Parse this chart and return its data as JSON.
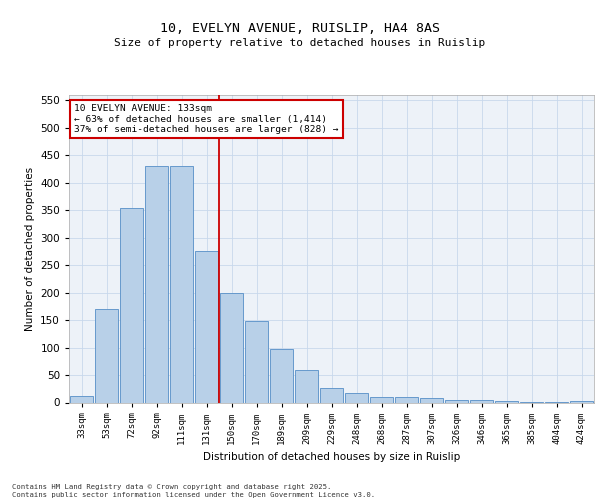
{
  "title1": "10, EVELYN AVENUE, RUISLIP, HA4 8AS",
  "title2": "Size of property relative to detached houses in Ruislip",
  "xlabel": "Distribution of detached houses by size in Ruislip",
  "ylabel": "Number of detached properties",
  "categories": [
    "33sqm",
    "53sqm",
    "72sqm",
    "92sqm",
    "111sqm",
    "131sqm",
    "150sqm",
    "170sqm",
    "189sqm",
    "209sqm",
    "229sqm",
    "248sqm",
    "268sqm",
    "287sqm",
    "307sqm",
    "326sqm",
    "346sqm",
    "365sqm",
    "385sqm",
    "404sqm",
    "424sqm"
  ],
  "values": [
    12,
    170,
    355,
    430,
    430,
    275,
    200,
    148,
    98,
    60,
    27,
    18,
    10,
    10,
    8,
    5,
    4,
    2,
    1,
    1,
    3
  ],
  "bar_color": "#b8d0e8",
  "bar_edge_color": "#6699cc",
  "vline_color": "#cc0000",
  "vline_pos": 5.5,
  "annotation_title": "10 EVELYN AVENUE: 133sqm",
  "annotation_line2": "← 63% of detached houses are smaller (1,414)",
  "annotation_line3": "37% of semi-detached houses are larger (828) →",
  "annotation_box_color": "#cc0000",
  "grid_color": "#c8d8ec",
  "bg_color": "#edf2f8",
  "ylim": [
    0,
    560
  ],
  "yticks": [
    0,
    50,
    100,
    150,
    200,
    250,
    300,
    350,
    400,
    450,
    500,
    550
  ],
  "footnote1": "Contains HM Land Registry data © Crown copyright and database right 2025.",
  "footnote2": "Contains public sector information licensed under the Open Government Licence v3.0."
}
